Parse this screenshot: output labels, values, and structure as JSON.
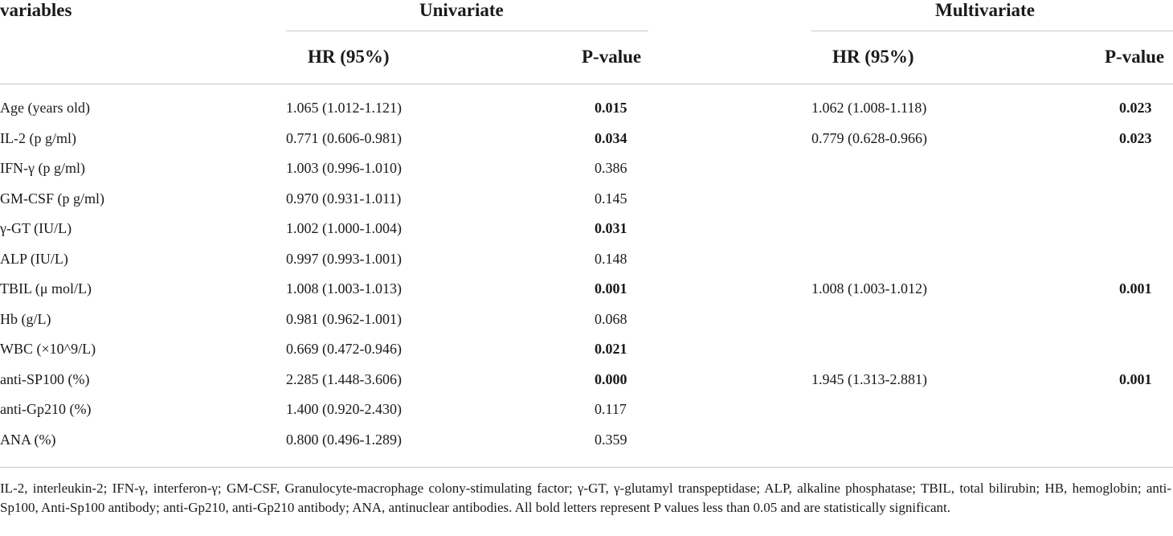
{
  "headers": {
    "variables": "variables",
    "univariate": "Univariate",
    "multivariate": "Multivariate",
    "uni_hr": "HR (95%)",
    "uni_p": "P-value",
    "multi_hr": "HR (95%)",
    "multi_p": "P-value"
  },
  "rows": [
    {
      "variable": "Age (years old)",
      "uni_hr": "1.065 (1.012-1.121)",
      "uni_p": "0.015",
      "uni_bold": true,
      "multi_hr": "1.062 (1.008-1.118)",
      "multi_p": "0.023",
      "multi_bold": true
    },
    {
      "variable": "IL-2 (p g/ml)",
      "uni_hr": "0.771 (0.606-0.981)",
      "uni_p": "0.034",
      "uni_bold": true,
      "multi_hr": "0.779 (0.628-0.966)",
      "multi_p": "0.023",
      "multi_bold": true
    },
    {
      "variable": "IFN-γ (p g/ml)",
      "uni_hr": "1.003 (0.996-1.010)",
      "uni_p": "0.386",
      "uni_bold": false,
      "multi_hr": "",
      "multi_p": "",
      "multi_bold": false
    },
    {
      "variable": "GM-CSF (p g/ml)",
      "uni_hr": "0.970 (0.931-1.011)",
      "uni_p": "0.145",
      "uni_bold": false,
      "multi_hr": "",
      "multi_p": "",
      "multi_bold": false
    },
    {
      "variable": "γ-GT (IU/L)",
      "uni_hr": "1.002 (1.000-1.004)",
      "uni_p": "0.031",
      "uni_bold": true,
      "multi_hr": "",
      "multi_p": "",
      "multi_bold": false
    },
    {
      "variable": "ALP (IU/L)",
      "uni_hr": "0.997 (0.993-1.001)",
      "uni_p": "0.148",
      "uni_bold": false,
      "multi_hr": "",
      "multi_p": "",
      "multi_bold": false
    },
    {
      "variable": "TBIL (μ mol/L)",
      "uni_hr": "1.008 (1.003-1.013)",
      "uni_p": "0.001",
      "uni_bold": true,
      "multi_hr": "1.008 (1.003-1.012)",
      "multi_p": "0.001",
      "multi_bold": true
    },
    {
      "variable": "Hb (g/L)",
      "uni_hr": "0.981 (0.962-1.001)",
      "uni_p": "0.068",
      "uni_bold": false,
      "multi_hr": "",
      "multi_p": "",
      "multi_bold": false
    },
    {
      "variable": "WBC (×10^9/L)",
      "uni_hr": "0.669 (0.472-0.946)",
      "uni_p": "0.021",
      "uni_bold": true,
      "multi_hr": "",
      "multi_p": "",
      "multi_bold": false
    },
    {
      "variable": "anti-SP100 (%)",
      "uni_hr": "2.285 (1.448-3.606)",
      "uni_p": "0.000",
      "uni_bold": true,
      "multi_hr": "1.945 (1.313-2.881)",
      "multi_p": "0.001",
      "multi_bold": true
    },
    {
      "variable": "anti-Gp210 (%)",
      "uni_hr": "1.400 (0.920-2.430)",
      "uni_p": "0.117",
      "uni_bold": false,
      "multi_hr": "",
      "multi_p": "",
      "multi_bold": false
    },
    {
      "variable": "ANA (%)",
      "uni_hr": "0.800 (0.496-1.289)",
      "uni_p": "0.359",
      "uni_bold": false,
      "multi_hr": "",
      "multi_p": "",
      "multi_bold": false
    }
  ],
  "footnote": "IL-2, interleukin-2; IFN-γ, interferon-γ; GM-CSF, Granulocyte-macrophage colony-stimulating factor; γ-GT, γ-glutamyl transpeptidase; ALP, alkaline phosphatase; TBIL, total bilirubin; HB, hemoglobin; anti-Sp100, Anti-Sp100 antibody; anti-Gp210, anti-Gp210 antibody; ANA, antinuclear antibodies. All bold letters represent P values less than 0.05 and are statistically significant."
}
